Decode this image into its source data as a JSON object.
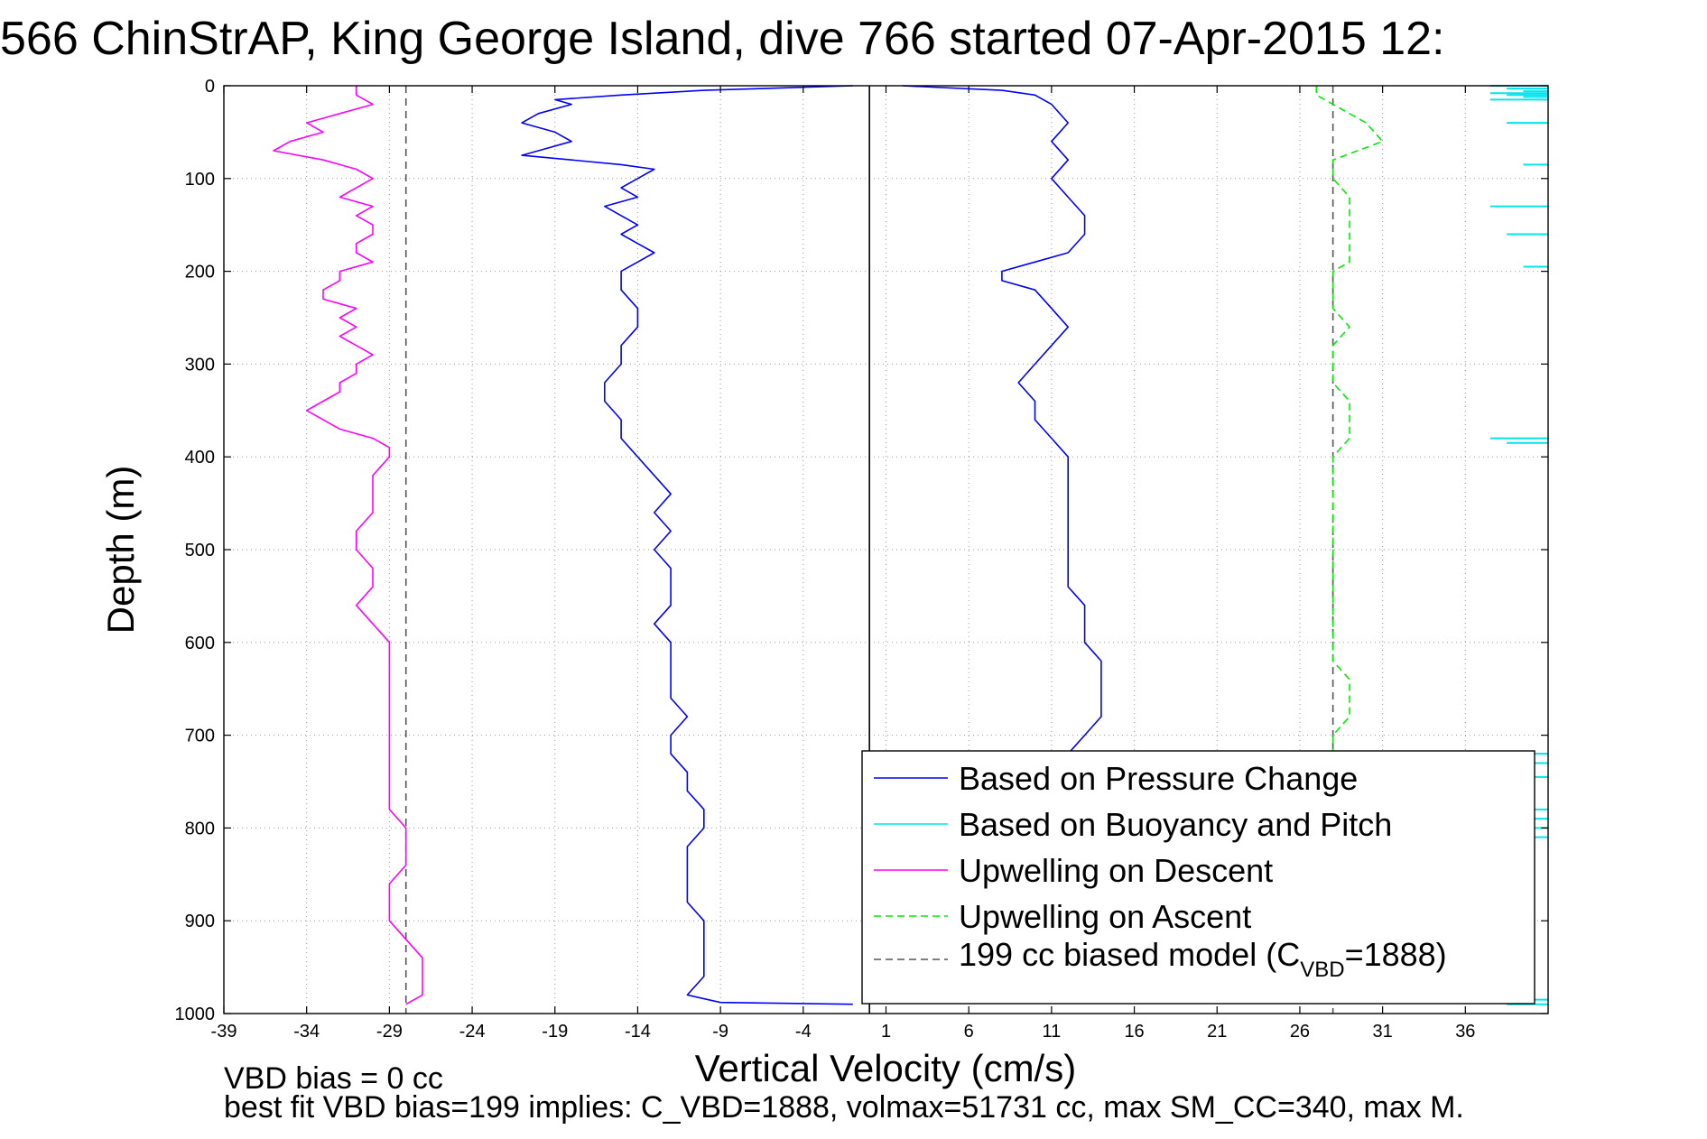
{
  "chart_data": {
    "type": "line",
    "title": "566 ChinStrAP, King George Island, dive 766 started 07-Apr-2015 12:",
    "xlabel": "Vertical Velocity (cm/s)",
    "ylabel": "Depth (m)",
    "xlim": [
      -39,
      41
    ],
    "ylim": [
      1000,
      0
    ],
    "y_reversed": true,
    "grid": true,
    "x_ticks": [
      -39,
      -34,
      -29,
      -24,
      -19,
      -14,
      -9,
      -4,
      1,
      6,
      11,
      16,
      21,
      26,
      31,
      36
    ],
    "x_tick_labels": [
      "-39",
      "-34",
      "-29",
      "-24",
      "-19",
      "-14",
      "-9",
      "-4",
      "1",
      "6",
      "11",
      "16",
      "21",
      "26",
      "31",
      "36"
    ],
    "y_ticks": [
      0,
      100,
      200,
      300,
      400,
      500,
      600,
      700,
      800,
      900,
      1000
    ],
    "y_tick_labels": [
      "0",
      "100",
      "200",
      "300",
      "400",
      "500",
      "600",
      "700",
      "800",
      "900",
      "1000"
    ],
    "legend_position": "bottom-right",
    "reference_lines": [
      {
        "x": 0,
        "color": "#000000",
        "style": "solid"
      },
      {
        "x": -28,
        "color": "#555555",
        "style": "dashed"
      },
      {
        "x": 28,
        "color": "#555555",
        "style": "dashed"
      }
    ],
    "series": [
      {
        "name": "Based on Pressure Change",
        "color": "#0000ff",
        "style": "solid",
        "segments": [
          {
            "depth": [
              0,
              5,
              10,
              15,
              20,
              30,
              40,
              50,
              60,
              70,
              75,
              80,
              85,
              90,
              100,
              110,
              120,
              130,
              140,
              150,
              160,
              170,
              180,
              190,
              200,
              220,
              240,
              260,
              280,
              300,
              320,
              340,
              360,
              380,
              400,
              420,
              440,
              460,
              480,
              500,
              520,
              540,
              560,
              580,
              600,
              620,
              640,
              660,
              680,
              700,
              720,
              740,
              760,
              780,
              800,
              820,
              840,
              860,
              880,
              900,
              920,
              940,
              960,
              980,
              988,
              990
            ],
            "velocity": [
              -1,
              -10,
              -15,
              -19,
              -18,
              -20,
              -21,
              -19,
              -18,
              -20,
              -21,
              -18,
              -15,
              -13,
              -14,
              -15,
              -14,
              -16,
              -15,
              -14,
              -15,
              -14,
              -13,
              -14,
              -15,
              -15,
              -14,
              -14,
              -15,
              -15,
              -16,
              -16,
              -15,
              -15,
              -14,
              -13,
              -12,
              -13,
              -12,
              -13,
              -12,
              -12,
              -12,
              -13,
              -12,
              -12,
              -12,
              -12,
              -11,
              -12,
              -12,
              -11,
              -11,
              -10,
              -10,
              -11,
              -11,
              -11,
              -11,
              -10,
              -10,
              -10,
              -10,
              -11,
              -9,
              -1
            ]
          },
          {
            "depth": [
              0,
              5,
              10,
              20,
              40,
              60,
              80,
              100,
              120,
              140,
              160,
              180,
              190,
              200,
              210,
              220,
              240,
              260,
              280,
              300,
              320,
              340,
              360,
              380,
              400,
              420,
              440,
              460,
              480,
              500,
              520,
              540,
              560,
              580,
              600,
              620,
              640,
              660,
              680,
              700,
              720
            ],
            "velocity": [
              2,
              8,
              10,
              11,
              12,
              11,
              12,
              11,
              12,
              13,
              13,
              12,
              10,
              8,
              8,
              10,
              11,
              12,
              11,
              10,
              9,
              10,
              10,
              11,
              12,
              12,
              12,
              12,
              12,
              12,
              12,
              12,
              13,
              13,
              13,
              14,
              14,
              14,
              14,
              13,
              12
            ]
          }
        ]
      },
      {
        "name": "Based on Buoyancy and Pitch",
        "color": "#00e5ee",
        "style": "solid",
        "segments": []
      },
      {
        "name": "Upwelling on Descent",
        "color": "#ff00ff",
        "style": "solid",
        "segments": [
          {
            "depth": [
              0,
              10,
              20,
              30,
              40,
              50,
              60,
              70,
              80,
              90,
              100,
              110,
              120,
              130,
              140,
              150,
              160,
              170,
              180,
              190,
              200,
              210,
              220,
              230,
              240,
              250,
              260,
              270,
              280,
              290,
              300,
              310,
              320,
              330,
              340,
              350,
              360,
              370,
              380,
              390,
              400,
              420,
              440,
              460,
              480,
              500,
              520,
              540,
              560,
              580,
              600,
              620,
              640,
              660,
              680,
              700,
              720,
              740,
              760,
              780,
              800,
              820,
              840,
              860,
              880,
              900,
              920,
              940,
              960,
              980,
              990
            ],
            "velocity": [
              -31,
              -31,
              -30,
              -32,
              -34,
              -33,
              -35,
              -36,
              -33,
              -31,
              -30,
              -31,
              -32,
              -30,
              -31,
              -30,
              -30,
              -31,
              -31,
              -30,
              -32,
              -32,
              -33,
              -33,
              -31,
              -32,
              -31,
              -32,
              -31,
              -30,
              -31,
              -31,
              -32,
              -32,
              -33,
              -34,
              -33,
              -32,
              -30,
              -29,
              -29,
              -30,
              -30,
              -30,
              -31,
              -31,
              -30,
              -30,
              -31,
              -30,
              -29,
              -29,
              -29,
              -29,
              -29,
              -29,
              -29,
              -29,
              -29,
              -29,
              -28,
              -28,
              -28,
              -29,
              -29,
              -29,
              -28,
              -27,
              -27,
              -27,
              -28
            ]
          }
        ]
      },
      {
        "name": "Upwelling on Ascent",
        "color": "#00ee00",
        "style": "dashed",
        "segments": [
          {
            "depth": [
              0,
              10,
              20,
              40,
              60,
              80,
              100,
              120,
              140,
              160,
              180,
              190,
              200,
              220,
              240,
              260,
              280,
              300,
              320,
              340,
              360,
              380,
              400,
              420,
              440,
              460,
              480,
              500,
              520,
              540,
              560,
              580,
              600,
              620,
              640,
              660,
              680,
              700,
              720
            ],
            "velocity": [
              27,
              27,
              28,
              30,
              31,
              28,
              28,
              29,
              29,
              29,
              29,
              29,
              28,
              28,
              28,
              29,
              28,
              28,
              28,
              29,
              29,
              29,
              28,
              28,
              28,
              28,
              28,
              28,
              28,
              28,
              28,
              28,
              28,
              28,
              29,
              29,
              29,
              28,
              28
            ]
          }
        ]
      },
      {
        "name": "199 cc biased model (C_VBD=1888)",
        "color": "#555555",
        "style": "dashed",
        "segments": []
      }
    ],
    "legend": {
      "entries": [
        {
          "label": "Based on Pressure Change",
          "color": "#0000ff",
          "style": "solid"
        },
        {
          "label": "Based on Buoyancy and Pitch",
          "color": "#00e5ee",
          "style": "solid"
        },
        {
          "label": "Upwelling on Descent",
          "color": "#ff00ff",
          "style": "solid"
        },
        {
          "label": "Upwelling on Ascent",
          "color": "#00ee00",
          "style": "dashed"
        }
      ],
      "model_entry": {
        "prefix": "199 cc biased model (C",
        "subscript": "VBD",
        "suffix": "=1888)",
        "color": "#555555",
        "style": "dashed"
      }
    },
    "annotations": [
      "VBD bias = 0 cc",
      "best fit VBD bias=199 implies: C_VBD=1888, volmax=51731 cc, max SM_CC=340, max M."
    ]
  }
}
